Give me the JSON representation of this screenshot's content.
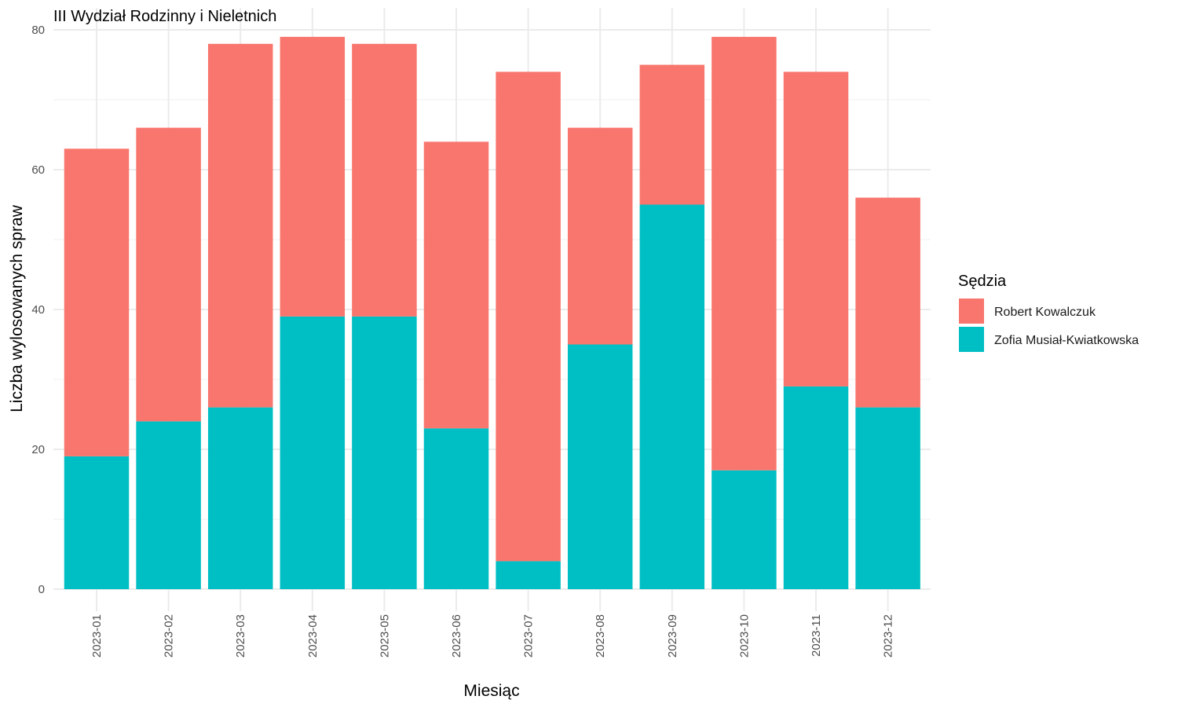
{
  "chart_data": {
    "type": "bar",
    "stacked": true,
    "title": "III Wydział Rodzinny i Nieletnich",
    "xlabel": "Miesiąc",
    "ylabel": "Liczba wylosowanych spraw",
    "ylim": [
      0,
      80
    ],
    "yticks": [
      0,
      20,
      40,
      60,
      80
    ],
    "grid": true,
    "legend_position": "right",
    "legend_title": "Sędzia",
    "categories": [
      "2023-01",
      "2023-02",
      "2023-03",
      "2023-04",
      "2023-05",
      "2023-06",
      "2023-07",
      "2023-08",
      "2023-09",
      "2023-10",
      "2023-11",
      "2023-12"
    ],
    "series": [
      {
        "name": "Zofia Musiał-Kwiatkowska",
        "color": "#00BFC4",
        "values": [
          19,
          24,
          26,
          39,
          39,
          23,
          4,
          35,
          55,
          17,
          29,
          26
        ]
      },
      {
        "name": "Robert Kowalczuk",
        "color": "#F8766D",
        "values": [
          44,
          42,
          52,
          40,
          39,
          41,
          70,
          31,
          20,
          62,
          45,
          30
        ]
      }
    ],
    "legend_order": [
      "Robert Kowalczuk",
      "Zofia Musiał-Kwiatkowska"
    ]
  }
}
